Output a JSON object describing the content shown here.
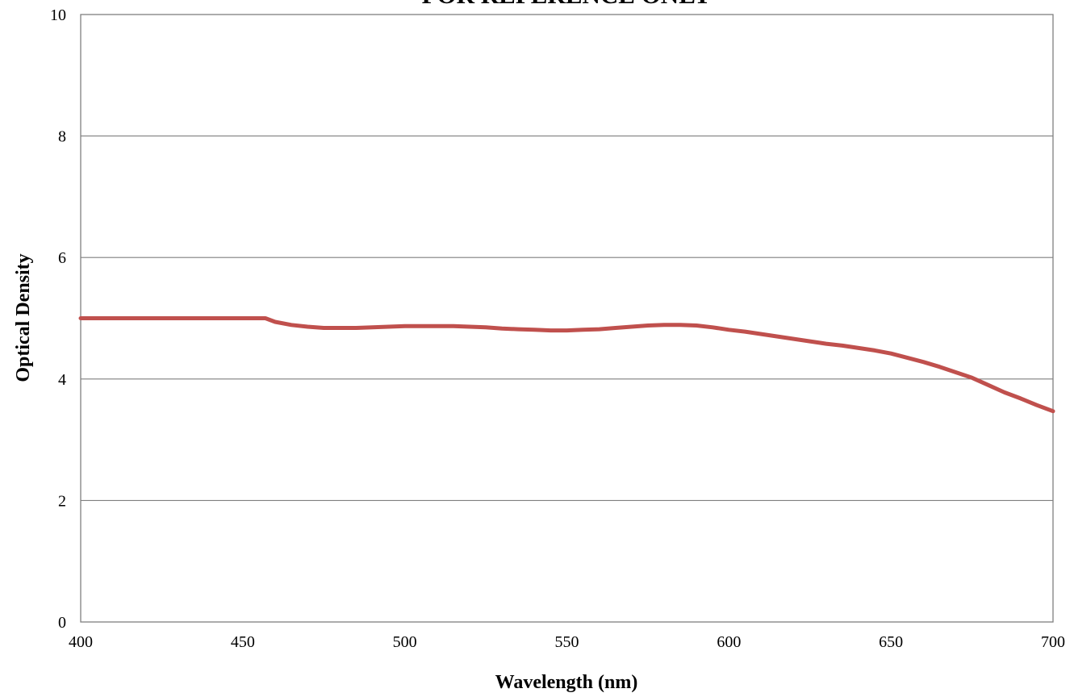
{
  "chart_data": {
    "type": "line",
    "title": "FOR REFERENCE ONLY",
    "xlabel": "Wavelength (nm)",
    "ylabel": "Optical Density",
    "xlim": [
      400,
      700
    ],
    "ylim": [
      0,
      10
    ],
    "xticks": [
      400,
      450,
      500,
      550,
      600,
      650,
      700
    ],
    "yticks": [
      0,
      2,
      4,
      6,
      8,
      10
    ],
    "grid": "horizontal",
    "legend": "none",
    "line_color": "#c0504d",
    "series": [
      {
        "x": [
          400,
          410,
          420,
          430,
          440,
          450,
          457,
          460,
          465,
          470,
          475,
          480,
          485,
          490,
          495,
          500,
          505,
          510,
          515,
          520,
          525,
          530,
          535,
          540,
          545,
          550,
          555,
          560,
          565,
          570,
          575,
          580,
          585,
          590,
          595,
          600,
          605,
          610,
          615,
          620,
          625,
          630,
          635,
          640,
          645,
          650,
          655,
          660,
          665,
          670,
          675,
          680,
          685,
          690,
          695,
          700
        ],
        "y": [
          5.0,
          5.0,
          5.0,
          5.0,
          5.0,
          5.0,
          5.0,
          4.94,
          4.89,
          4.86,
          4.84,
          4.84,
          4.84,
          4.85,
          4.86,
          4.87,
          4.87,
          4.87,
          4.87,
          4.86,
          4.85,
          4.83,
          4.82,
          4.81,
          4.8,
          4.8,
          4.81,
          4.82,
          4.84,
          4.86,
          4.88,
          4.89,
          4.89,
          4.88,
          4.85,
          4.81,
          4.78,
          4.74,
          4.7,
          4.66,
          4.62,
          4.58,
          4.55,
          4.51,
          4.47,
          4.42,
          4.35,
          4.28,
          4.2,
          4.11,
          4.02,
          3.9,
          3.78,
          3.68,
          3.57,
          3.47
        ]
      }
    ]
  }
}
